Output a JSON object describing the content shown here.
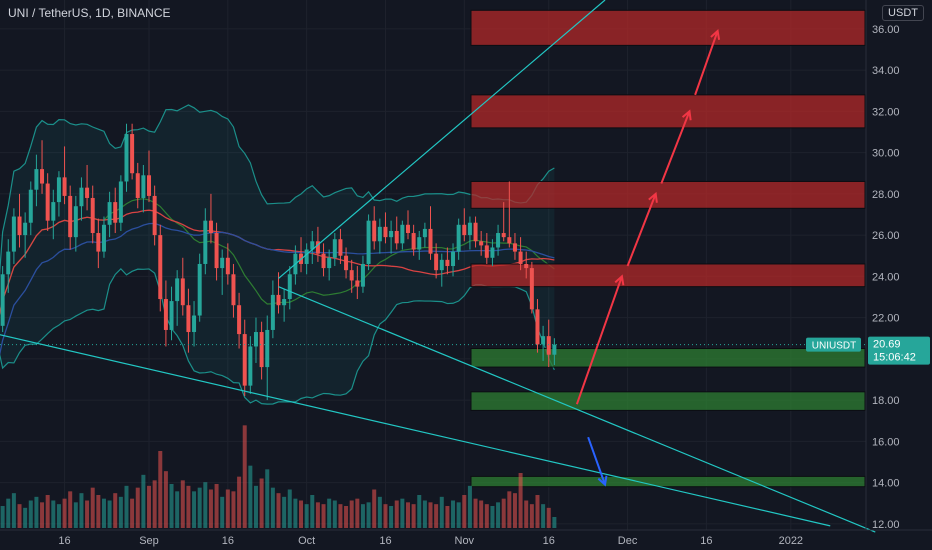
{
  "chart_data": {
    "type": "candlestick",
    "title": "UNI / TetherUS, 1D, BINANCE",
    "unit_label": "USDT",
    "ylim": [
      11.7,
      37.4
    ],
    "y_ticks": [
      "12.00",
      "14.00",
      "16.00",
      "18.00",
      "20.00",
      "22.00",
      "24.00",
      "26.00",
      "28.00",
      "30.00",
      "32.00",
      "34.00",
      "36.00"
    ],
    "x_ticks": [
      "16",
      "Sep",
      "16",
      "Oct",
      "16",
      "Nov",
      "16",
      "Dec",
      "16",
      "2022"
    ],
    "price_label": {
      "symbol": "UNIUSDT",
      "value": "20.69",
      "countdown": "15:06:42"
    },
    "last_price": 20.69,
    "candles": [
      [
        20.5,
        22.0,
        19.9,
        21.6
      ],
      [
        21.6,
        24.5,
        21.3,
        24.1
      ],
      [
        24.1,
        25.8,
        23.2,
        25.2
      ],
      [
        25.2,
        27.3,
        24.6,
        26.9
      ],
      [
        26.9,
        28.0,
        25.4,
        26.0
      ],
      [
        26.0,
        27.1,
        24.9,
        26.6
      ],
      [
        26.6,
        28.6,
        26.0,
        28.2
      ],
      [
        28.2,
        29.9,
        27.4,
        29.2
      ],
      [
        29.2,
        30.6,
        28.0,
        28.5
      ],
      [
        28.5,
        29.0,
        26.2,
        26.7
      ],
      [
        26.7,
        28.2,
        25.8,
        27.6
      ],
      [
        27.6,
        29.1,
        26.9,
        28.8
      ],
      [
        28.8,
        30.3,
        27.5,
        27.9
      ],
      [
        27.9,
        28.4,
        25.3,
        25.9
      ],
      [
        25.9,
        27.9,
        25.2,
        27.4
      ],
      [
        27.4,
        28.8,
        26.7,
        28.3
      ],
      [
        28.3,
        29.4,
        27.2,
        27.8
      ],
      [
        27.8,
        28.4,
        25.6,
        26.1
      ],
      [
        26.1,
        26.8,
        24.4,
        25.2
      ],
      [
        25.2,
        26.9,
        24.9,
        26.5
      ],
      [
        26.5,
        28.1,
        25.9,
        27.6
      ],
      [
        27.6,
        28.3,
        26.1,
        26.6
      ],
      [
        26.6,
        28.9,
        26.2,
        28.6
      ],
      [
        28.6,
        31.4,
        28.1,
        30.9
      ],
      [
        30.9,
        31.4,
        28.7,
        29.0
      ],
      [
        29.0,
        29.5,
        27.3,
        27.8
      ],
      [
        27.8,
        29.4,
        27.1,
        28.9
      ],
      [
        28.9,
        30.1,
        27.6,
        27.9
      ],
      [
        27.9,
        28.4,
        25.5,
        26.0
      ],
      [
        26.0,
        26.5,
        22.3,
        22.9
      ],
      [
        22.9,
        23.8,
        20.6,
        21.4
      ],
      [
        21.4,
        23.5,
        20.9,
        22.8
      ],
      [
        22.8,
        24.3,
        21.6,
        23.9
      ],
      [
        23.9,
        24.9,
        22.1,
        22.6
      ],
      [
        22.6,
        23.4,
        20.3,
        21.3
      ],
      [
        21.3,
        22.8,
        20.6,
        22.1
      ],
      [
        22.1,
        25.1,
        21.8,
        24.6
      ],
      [
        24.6,
        27.3,
        24.1,
        26.7
      ],
      [
        26.7,
        28.0,
        25.6,
        26.1
      ],
      [
        26.1,
        26.6,
        23.8,
        24.4
      ],
      [
        24.4,
        25.3,
        23.1,
        24.9
      ],
      [
        24.9,
        25.6,
        23.6,
        24.1
      ],
      [
        24.1,
        24.6,
        22.0,
        22.6
      ],
      [
        22.6,
        23.2,
        20.5,
        21.2
      ],
      [
        21.2,
        21.9,
        18.2,
        18.7
      ],
      [
        18.7,
        21.1,
        18.3,
        20.6
      ],
      [
        20.6,
        22.0,
        19.8,
        21.3
      ],
      [
        21.3,
        21.8,
        19.0,
        19.6
      ],
      [
        19.6,
        22.1,
        18.0,
        21.4
      ],
      [
        21.4,
        23.8,
        21.0,
        23.1
      ],
      [
        23.1,
        24.2,
        22.2,
        22.6
      ],
      [
        22.6,
        23.4,
        21.8,
        22.9
      ],
      [
        22.9,
        24.5,
        22.4,
        24.1
      ],
      [
        24.1,
        25.5,
        23.6,
        25.1
      ],
      [
        25.1,
        25.9,
        24.2,
        24.6
      ],
      [
        24.6,
        25.6,
        24.1,
        25.3
      ],
      [
        25.3,
        26.2,
        24.6,
        25.7
      ],
      [
        25.7,
        26.4,
        24.7,
        25.1
      ],
      [
        25.1,
        25.6,
        24.0,
        24.4
      ],
      [
        24.4,
        25.3,
        23.8,
        24.9
      ],
      [
        24.9,
        26.1,
        24.5,
        25.8
      ],
      [
        25.8,
        26.3,
        24.6,
        25.0
      ],
      [
        25.0,
        25.4,
        23.9,
        24.3
      ],
      [
        24.3,
        24.8,
        23.2,
        23.8
      ],
      [
        23.8,
        24.5,
        22.9,
        23.5
      ],
      [
        23.5,
        25.0,
        23.2,
        24.6
      ],
      [
        24.6,
        27.0,
        24.3,
        26.7
      ],
      [
        26.7,
        27.4,
        25.3,
        25.7
      ],
      [
        25.7,
        26.8,
        25.1,
        26.4
      ],
      [
        26.4,
        27.1,
        25.6,
        25.9
      ],
      [
        25.9,
        26.7,
        25.1,
        26.2
      ],
      [
        26.2,
        26.9,
        25.3,
        25.6
      ],
      [
        25.6,
        26.7,
        25.3,
        26.5
      ],
      [
        26.5,
        27.2,
        25.8,
        26.1
      ],
      [
        26.1,
        26.5,
        25.0,
        25.3
      ],
      [
        25.3,
        26.2,
        24.8,
        25.9
      ],
      [
        25.9,
        26.6,
        25.4,
        26.3
      ],
      [
        26.3,
        27.4,
        24.8,
        25.1
      ],
      [
        25.1,
        25.6,
        23.9,
        24.3
      ],
      [
        24.3,
        25.1,
        23.5,
        24.8
      ],
      [
        24.8,
        25.4,
        24.1,
        24.5
      ],
      [
        24.5,
        25.6,
        24.0,
        25.2
      ],
      [
        25.2,
        26.8,
        24.8,
        26.5
      ],
      [
        26.5,
        27.3,
        25.7,
        26.0
      ],
      [
        26.0,
        26.9,
        25.3,
        26.6
      ],
      [
        26.6,
        26.9,
        25.4,
        25.7
      ],
      [
        25.7,
        26.2,
        25.0,
        25.5
      ],
      [
        25.5,
        26.1,
        24.6,
        24.9
      ],
      [
        24.9,
        25.8,
        24.5,
        25.4
      ],
      [
        25.4,
        26.5,
        25.0,
        26.1
      ],
      [
        26.1,
        27.6,
        25.7,
        25.9
      ],
      [
        25.9,
        28.6,
        25.4,
        25.6
      ],
      [
        25.6,
        26.1,
        24.8,
        25.2
      ],
      [
        25.2,
        25.9,
        24.3,
        24.6
      ],
      [
        24.6,
        25.2,
        23.9,
        24.4
      ],
      [
        24.4,
        24.7,
        22.2,
        22.4
      ],
      [
        22.4,
        22.9,
        20.3,
        20.7
      ],
      [
        20.7,
        21.6,
        19.9,
        21.1
      ],
      [
        21.1,
        21.9,
        19.6,
        20.2
      ],
      [
        20.2,
        21.0,
        19.7,
        20.69
      ]
    ],
    "volume": [
      1.4,
      1.2,
      1.6,
      1.9,
      1.3,
      1.1,
      1.5,
      1.7,
      1.4,
      1.8,
      1.5,
      1.3,
      1.6,
      2.0,
      1.4,
      1.9,
      1.5,
      2.2,
      1.8,
      1.6,
      1.5,
      1.9,
      1.7,
      2.3,
      1.6,
      2.2,
      2.9,
      2.3,
      2.6,
      4.2,
      3.1,
      2.4,
      2.0,
      2.6,
      2.3,
      2.0,
      2.2,
      2.5,
      2.1,
      2.4,
      1.7,
      2.1,
      2.0,
      2.8,
      5.6,
      3.4,
      2.3,
      2.7,
      3.2,
      2.2,
      1.9,
      1.7,
      2.1,
      1.6,
      1.5,
      1.3,
      1.8,
      1.4,
      1.3,
      1.6,
      1.5,
      1.3,
      1.2,
      1.5,
      1.6,
      1.3,
      1.4,
      2.1,
      1.7,
      1.3,
      1.2,
      1.5,
      1.6,
      1.4,
      1.3,
      1.8,
      1.5,
      1.4,
      1.3,
      1.7,
      1.2,
      1.5,
      1.4,
      1.8,
      2.3,
      1.6,
      1.5,
      1.3,
      1.2,
      1.4,
      1.6,
      2.0,
      1.9,
      3.0,
      1.5,
      1.3,
      1.8,
      1.3,
      1.1,
      0.6
    ],
    "volume_max": 6.0,
    "supply_zones": [
      [
        35.2,
        36.9
      ],
      [
        31.2,
        32.8
      ],
      [
        27.3,
        28.6
      ],
      [
        23.5,
        24.6
      ]
    ],
    "demand_zones": [
      [
        19.6,
        20.5
      ],
      [
        17.5,
        18.4
      ],
      [
        13.8,
        14.3
      ]
    ],
    "trendlines": [
      {
        "color": "#22c7c4",
        "points": [
          [
            50,
            23.9
          ],
          [
            108,
            37.4
          ]
        ]
      },
      {
        "color": "#22c7c4",
        "points": [
          [
            50,
            23.5
          ],
          [
            156,
            11.6
          ]
        ]
      },
      {
        "color": "#22c7c4",
        "points": [
          [
            0,
            21.2
          ],
          [
            148,
            11.9
          ]
        ]
      }
    ],
    "arrows": [
      {
        "color": "#f23645",
        "from": [
          103,
          17.8
        ],
        "to": [
          111,
          24.0
        ]
      },
      {
        "color": "#f23645",
        "from": [
          112,
          24.5
        ],
        "to": [
          117,
          28.0
        ]
      },
      {
        "color": "#f23645",
        "from": [
          118,
          28.5
        ],
        "to": [
          123,
          32.0
        ]
      },
      {
        "color": "#f23645",
        "from": [
          124,
          32.8
        ],
        "to": [
          128,
          35.9
        ]
      },
      {
        "color": "#2962ff",
        "from": [
          105,
          16.2
        ],
        "to": [
          108,
          13.9
        ]
      }
    ]
  }
}
